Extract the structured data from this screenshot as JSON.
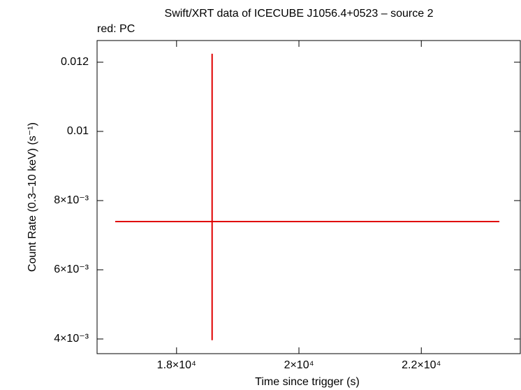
{
  "chart_data": {
    "type": "scatter",
    "title": "Swift/XRT data of ICECUBE J1056.4+0523 – source 2",
    "subtitle": "red: PC",
    "x_label": "Time since trigger (s)",
    "y_label": "Count Rate (0.3–10 keV) (s⁻¹)",
    "xlim": [
      16701,
      23618
    ],
    "ylim": [
      0.003576,
      0.012626
    ],
    "xticks": [
      {
        "value": 18000,
        "label": "1.8×10⁴"
      },
      {
        "value": 20000,
        "label": "2×10⁴"
      },
      {
        "value": 22000,
        "label": "2.2×10⁴"
      }
    ],
    "yticks": [
      {
        "value": 0.004,
        "label": "4×10⁻³"
      },
      {
        "value": 0.006,
        "label": "6×10⁻³"
      },
      {
        "value": 0.008,
        "label": "8×10⁻³"
      },
      0.01,
      0.012
    ],
    "series": [
      {
        "color": "#e00000",
        "x": [
          18581
        ],
        "values": [
          0.007394
        ],
        "xerr_minus": [
          1584
        ],
        "xerr_plus": [
          4695
        ],
        "yerr_minus": [
          0.00343
        ],
        "yerr_plus": [
          0.00485
        ]
      }
    ]
  }
}
